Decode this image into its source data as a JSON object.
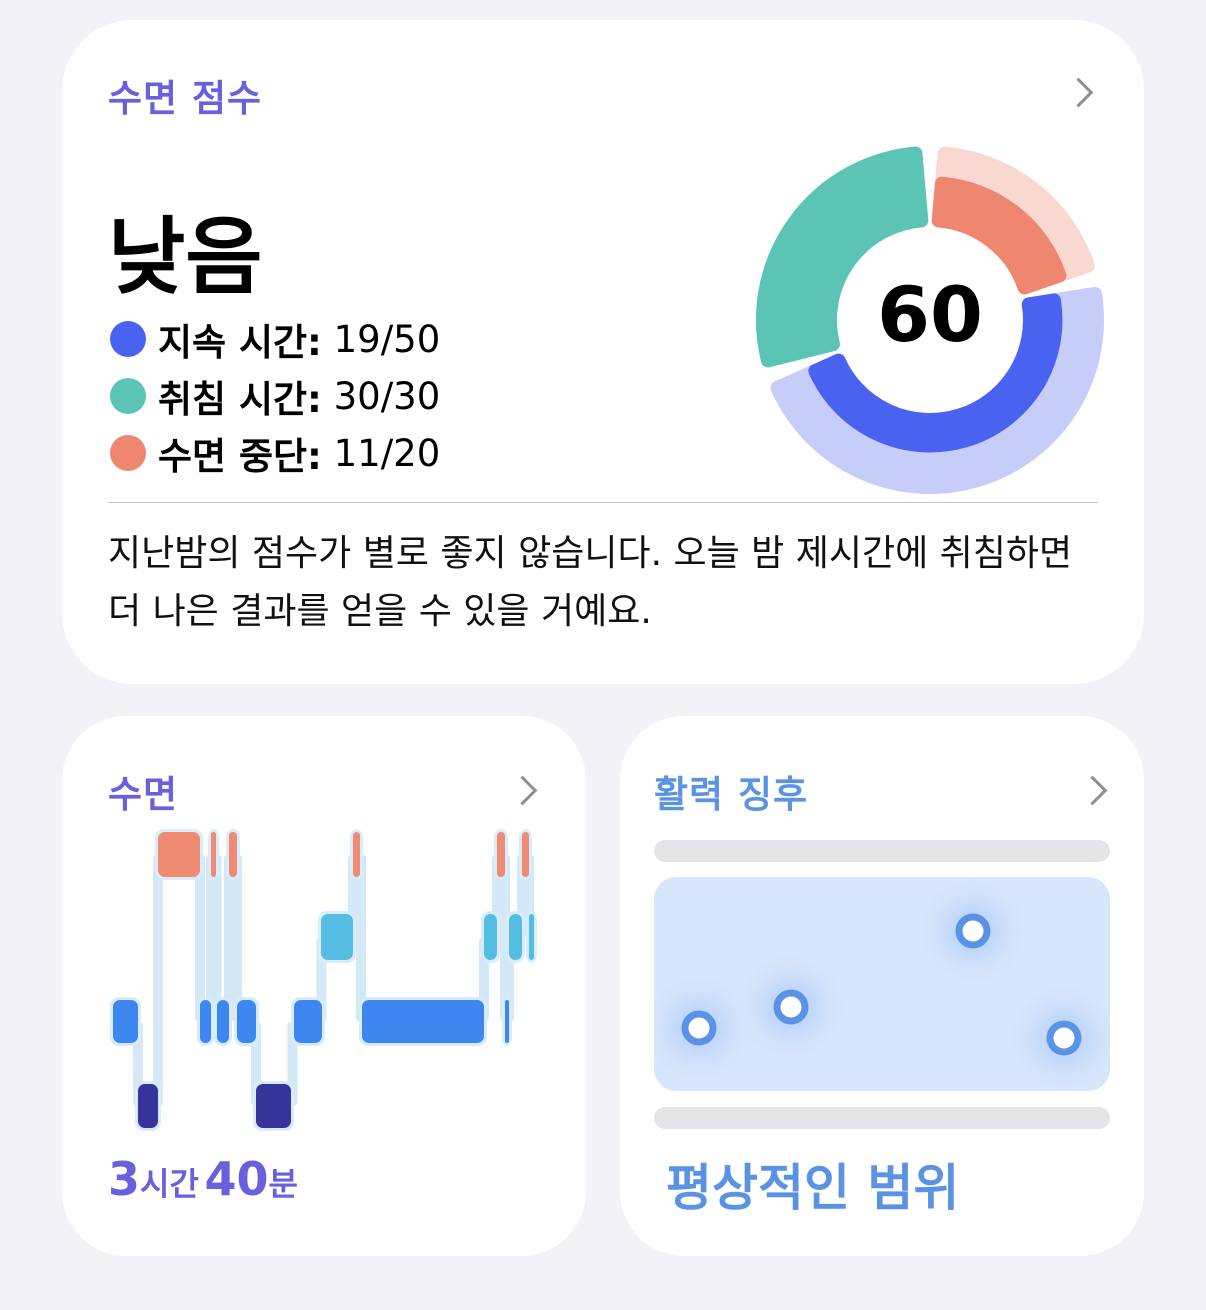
{
  "sleep_score": {
    "title": "수면 점수",
    "rating": "낮음",
    "score": "60",
    "components": [
      {
        "label": "지속 시간:",
        "value": "19/50",
        "score": 19,
        "max": 50,
        "color": "#4a62f0",
        "track": "#c5cdf8"
      },
      {
        "label": "취침 시간:",
        "value": "30/30",
        "score": 30,
        "max": 30,
        "color": "#5cc4b4",
        "track": "#c9ece6"
      },
      {
        "label": "수면 중단:",
        "value": "11/20",
        "score": 11,
        "max": 20,
        "color": "#ee8670",
        "track": "#f9d8d1"
      }
    ],
    "description": "지난밤의 점수가 별로 좋지 않습니다. 오늘 밤 제시간에 취침하면 더 나은 결과를 얻을 수 있을 거예요.",
    "title_color": "#6a5fdc"
  },
  "sleep": {
    "title": "수면",
    "duration": {
      "hours": "3",
      "hours_unit": "시간",
      "minutes": "40",
      "minutes_unit": "분"
    },
    "stage_colors": {
      "awake": "#ef8a73",
      "rem": "#55bde2",
      "core": "#3f87f0",
      "deep": "#36339b"
    },
    "title_color": "#6a5fdc"
  },
  "vitals": {
    "title": "활력 징후",
    "status": "평상적인 범위",
    "color": "#5a93e3"
  }
}
